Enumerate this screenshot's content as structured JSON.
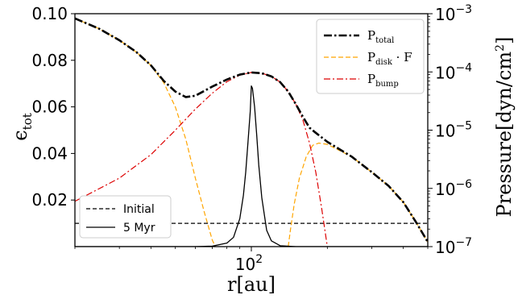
{
  "chart_data": {
    "type": "line",
    "xlabel": "r[au]",
    "x_scale": "log",
    "x_range": [
      20,
      500
    ],
    "x_tick_label": "10",
    "x_tick_exponent": "2",
    "left_axis": {
      "label": "ϵ",
      "label_sub": "tot",
      "range": [
        0,
        0.1
      ],
      "ticks": [
        "0.02",
        "0.04",
        "0.06",
        "0.08",
        "0.10"
      ],
      "tick_values": [
        0.02,
        0.04,
        0.06,
        0.08,
        0.1
      ]
    },
    "right_axis": {
      "label": "Pressure[dyn/cm",
      "label_sup": "2",
      "label_end": "]",
      "scale": "log",
      "range": [
        1e-07,
        0.001
      ],
      "tick_mantissa": "10",
      "tick_exponents": [
        "−7",
        "−6",
        "−5",
        "−4",
        "−3"
      ],
      "tick_values": [
        1e-07,
        1e-06,
        1e-05,
        0.0001,
        0.001
      ]
    },
    "legend_right": {
      "position": "upper right",
      "items": [
        {
          "main": "P",
          "sub": "total",
          "tail": ""
        },
        {
          "main": "P",
          "sub": "disk",
          "tail": " · F"
        },
        {
          "main": "P",
          "sub": "bump",
          "tail": ""
        }
      ]
    },
    "legend_left": {
      "position": "lower left",
      "items": [
        "Initial",
        "5 Myr"
      ]
    },
    "colors": {
      "total": "#000000",
      "disk": "#ffa500",
      "bump": "#dd0000",
      "initial": "#000000",
      "myr5": "#000000"
    },
    "series": [
      {
        "key": "total",
        "axis": "right",
        "x": [
          20,
          25,
          30,
          35,
          40,
          45,
          50,
          55,
          60,
          65,
          70,
          80,
          90,
          100,
          110,
          120,
          130,
          140,
          150,
          160,
          170,
          180,
          200,
          250,
          300,
          350,
          400,
          450,
          500
        ],
        "y": [
          0.00083,
          0.00055,
          0.00035,
          0.00022,
          0.00013,
          7e-05,
          4.6e-05,
          3.7e-05,
          3.9e-05,
          4.7e-05,
          5.6e-05,
          7.4e-05,
          9e-05,
          9.8e-05,
          9.5e-05,
          8.4e-05,
          6.7e-05,
          4.6e-05,
          2.8e-05,
          1.7e-05,
          1.1e-05,
          9e-06,
          6.3e-06,
          3.5e-06,
          1.9e-06,
          1.1e-06,
          5.8e-07,
          2.6e-07,
          1.2e-07
        ]
      },
      {
        "key": "disk",
        "axis": "right",
        "dash": "6,3",
        "segments": [
          {
            "x": [
              20,
              25,
              30,
              35,
              40,
              45,
              50,
              55,
              60,
              65,
              70,
              72
            ],
            "y": [
              0.00083,
              0.00055,
              0.00035,
              0.00022,
              0.00013,
              6.5e-05,
              2.5e-05,
              7e-06,
              1.5e-06,
              4e-07,
              1.3e-07,
              1e-07
            ]
          },
          {
            "x": [
              140,
              143,
              148,
              155,
              165,
              175,
              185,
              200,
              250,
              300,
              350,
              400,
              450,
              500
            ],
            "y": [
              1e-07,
              2e-07,
              5.5e-07,
              1.5e-06,
              3.5e-06,
              5.5e-06,
              6e-06,
              5.7e-06,
              3.5e-06,
              1.9e-06,
              1.1e-06,
              5.8e-07,
              2.6e-07,
              1.2e-07
            ]
          }
        ]
      },
      {
        "key": "bump",
        "axis": "right",
        "dash": "8,3,2,3",
        "x": [
          20,
          30,
          40,
          50,
          60,
          70,
          80,
          90,
          100,
          110,
          120,
          130,
          140,
          150,
          160,
          170,
          180,
          190,
          200
        ],
        "y": [
          6e-07,
          1.5e-06,
          3.8e-06,
          1e-05,
          2.3e-05,
          4.3e-05,
          6.8e-05,
          8.8e-05,
          9.8e-05,
          9.5e-05,
          8.4e-05,
          6.7e-05,
          4.6e-05,
          2.8e-05,
          1.5e-05,
          6e-06,
          1.9e-06,
          4.5e-07,
          1e-07
        ]
      },
      {
        "key": "initial",
        "axis": "left",
        "dash": "5,3",
        "x": [
          20,
          500
        ],
        "y": [
          0.01,
          0.01
        ]
      },
      {
        "key": "myr5",
        "axis": "left",
        "x": [
          20,
          60,
          70,
          80,
          85,
          90,
          93,
          95,
          97,
          99,
          100,
          101,
          103,
          105,
          107,
          110,
          115,
          120,
          130,
          150,
          500
        ],
        "y": [
          0.0,
          0.0,
          0.0002,
          0.0015,
          0.004,
          0.012,
          0.022,
          0.032,
          0.045,
          0.058,
          0.069,
          0.068,
          0.06,
          0.048,
          0.035,
          0.021,
          0.007,
          0.0025,
          0.0004,
          0.0,
          0.0
        ]
      }
    ]
  }
}
